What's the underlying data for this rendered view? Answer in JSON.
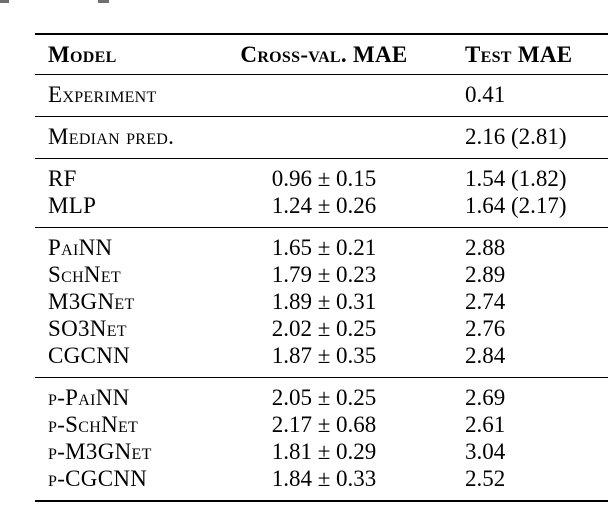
{
  "page": {
    "background": "#ffffff",
    "text_color": "#000000",
    "rule_color": "#000000"
  },
  "table": {
    "columns": [
      "Model",
      "Cross-val. MAE",
      "Test MAE"
    ],
    "groups": [
      {
        "rows": [
          {
            "model": "Experiment",
            "cross_val_mae": "",
            "test_mae": "0.41"
          }
        ]
      },
      {
        "rows": [
          {
            "model": "Median pred.",
            "cross_val_mae": "",
            "test_mae": "2.16 (2.81)"
          }
        ]
      },
      {
        "rows": [
          {
            "model": "RF",
            "cross_val_mae": "0.96 ± 0.15",
            "test_mae": "1.54 (1.82)"
          },
          {
            "model": "MLP",
            "cross_val_mae": "1.24 ± 0.26",
            "test_mae": "1.64 (2.17)"
          }
        ]
      },
      {
        "rows": [
          {
            "model": "PaiNN",
            "cross_val_mae": "1.65 ± 0.21",
            "test_mae": "2.88"
          },
          {
            "model": "SchNet",
            "cross_val_mae": "1.79 ± 0.23",
            "test_mae": "2.89"
          },
          {
            "model": "M3GNet",
            "cross_val_mae": "1.89 ± 0.31",
            "test_mae": "2.74"
          },
          {
            "model": "SO3Net",
            "cross_val_mae": "2.02 ± 0.25",
            "test_mae": "2.76"
          },
          {
            "model": "CGCNN",
            "cross_val_mae": "1.87 ± 0.35",
            "test_mae": "2.84"
          }
        ]
      },
      {
        "rows": [
          {
            "model": "p-PaiNN",
            "cross_val_mae": "2.05 ± 0.25",
            "test_mae": "2.69"
          },
          {
            "model": "p-SchNet",
            "cross_val_mae": "2.17 ± 0.68",
            "test_mae": "2.61"
          },
          {
            "model": "p-M3GNet",
            "cross_val_mae": "1.81 ± 0.29",
            "test_mae": "3.04"
          },
          {
            "model": "p-CGCNN",
            "cross_val_mae": "1.84 ± 0.33",
            "test_mae": "2.52"
          }
        ]
      }
    ]
  }
}
